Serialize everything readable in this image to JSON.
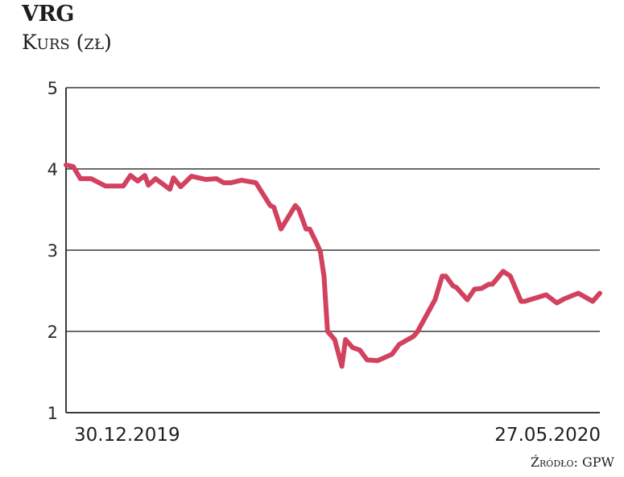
{
  "header": {
    "title": "VRG",
    "subtitle": "Kurs (zł)"
  },
  "footer": {
    "source": "Źródło: GPW"
  },
  "colors": {
    "line": "#d2415e",
    "grid": "#3a3a3a"
  },
  "chart_data": {
    "type": "line",
    "title": "VRG",
    "ylabel": "Kurs (zł)",
    "xlabel": "",
    "ylim": [
      1,
      5
    ],
    "yticks": [
      "5",
      "4",
      "3",
      "2",
      "1"
    ],
    "xlim": [
      "2019-12-30",
      "2020-05-27"
    ],
    "xtick_labels": [
      "30.12.2019",
      "27.05.2020"
    ],
    "grid": "horizontal",
    "series": [
      {
        "x": [
          "2019-12-30",
          "2020-01-01",
          "2020-01-03",
          "2020-01-06",
          "2020-01-10",
          "2020-01-15",
          "2020-01-17",
          "2020-01-19",
          "2020-01-21",
          "2020-01-22",
          "2020-01-24",
          "2020-01-28",
          "2020-01-29",
          "2020-01-31",
          "2020-02-03",
          "2020-02-07",
          "2020-02-10",
          "2020-02-12",
          "2020-02-14",
          "2020-02-17",
          "2020-02-21",
          "2020-02-25",
          "2020-02-26",
          "2020-02-28",
          "2020-03-03",
          "2020-03-04",
          "2020-03-06",
          "2020-03-07",
          "2020-03-09",
          "2020-03-10",
          "2020-03-11",
          "2020-03-12",
          "2020-03-14",
          "2020-03-16",
          "2020-03-17",
          "2020-03-19",
          "2020-03-21",
          "2020-03-23",
          "2020-03-26",
          "2020-03-30",
          "2020-04-01",
          "2020-04-05",
          "2020-04-06",
          "2020-04-11",
          "2020-04-13",
          "2020-04-14",
          "2020-04-16",
          "2020-04-17",
          "2020-04-20",
          "2020-04-22",
          "2020-04-24",
          "2020-04-26",
          "2020-04-27",
          "2020-04-30",
          "2020-05-02",
          "2020-05-05",
          "2020-05-06",
          "2020-05-12",
          "2020-05-15",
          "2020-05-17",
          "2020-05-21",
          "2020-05-25",
          "2020-05-27"
        ],
        "y": [
          4.05,
          4.03,
          3.88,
          3.88,
          3.79,
          3.79,
          3.92,
          3.85,
          3.92,
          3.8,
          3.88,
          3.75,
          3.89,
          3.78,
          3.91,
          3.87,
          3.88,
          3.83,
          3.83,
          3.86,
          3.83,
          3.55,
          3.53,
          3.26,
          3.55,
          3.5,
          3.26,
          3.26,
          3.08,
          2.98,
          2.68,
          2.0,
          1.9,
          1.57,
          1.9,
          1.8,
          1.77,
          1.65,
          1.64,
          1.72,
          1.84,
          1.94,
          1.99,
          2.39,
          2.68,
          2.68,
          2.56,
          2.54,
          2.39,
          2.52,
          2.53,
          2.58,
          2.58,
          2.74,
          2.68,
          2.37,
          2.37,
          2.45,
          2.35,
          2.4,
          2.47,
          2.37,
          2.47
        ]
      }
    ]
  }
}
